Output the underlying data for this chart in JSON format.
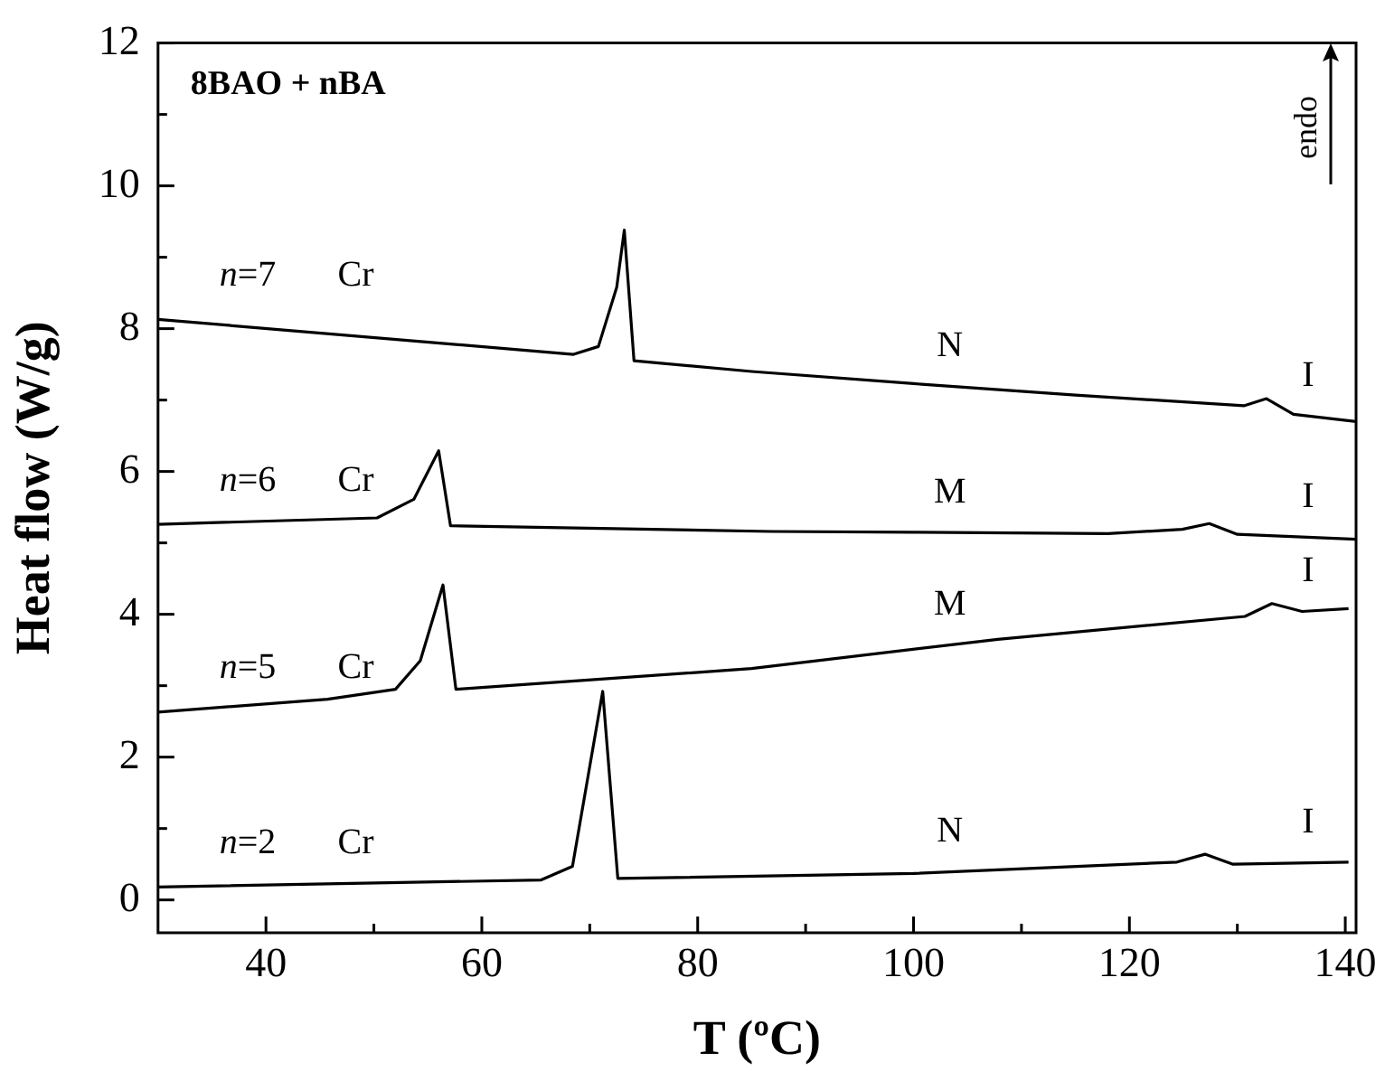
{
  "chart_data": {
    "type": "line",
    "title": "8BAO + nBA",
    "xlabel": "T (ºC)",
    "ylabel": "Heat flow (W/g)",
    "xlim": [
      30,
      141
    ],
    "ylim": [
      -0.46,
      12
    ],
    "xticks": [
      40,
      {
        "value": 50,
        "label": null
      },
      60,
      {
        "value": 70,
        "label": null
      },
      80,
      {
        "value": 90,
        "label": null
      },
      100,
      {
        "value": 110,
        "label": null
      },
      120,
      {
        "value": 130,
        "label": null
      },
      140
    ],
    "yticks": [
      0,
      {
        "value": 1,
        "label": null
      },
      2,
      {
        "value": 3,
        "label": null
      },
      4,
      {
        "value": 5,
        "label": null
      },
      6,
      {
        "value": 7,
        "label": null
      },
      8,
      {
        "value": 9,
        "label": null
      },
      10,
      {
        "value": 11,
        "label": null
      },
      12
    ],
    "grid": false,
    "legend": false,
    "marker": "none",
    "line_style": "solid",
    "series": [
      {
        "name": "n=7",
        "color": "#000000",
        "x": [
          30,
          68.5,
          70.8,
          72.5,
          73.2,
          74.1,
          85,
          100,
          115,
          130.6,
          132.7,
          135.2,
          141
        ],
        "values": [
          8.13,
          7.64,
          7.75,
          8.58,
          9.38,
          7.55,
          7.4,
          7.23,
          7.07,
          6.92,
          7.02,
          6.8,
          6.7
        ]
      },
      {
        "name": "n=6",
        "color": "#000000",
        "x": [
          30,
          50.3,
          53.7,
          56,
          57.1,
          86.8,
          100,
          118,
          124.9,
          127.4,
          130,
          141
        ],
        "values": [
          5.26,
          5.35,
          5.61,
          6.29,
          5.24,
          5.16,
          5.15,
          5.13,
          5.19,
          5.27,
          5.12,
          5.05
        ]
      },
      {
        "name": "n=5",
        "color": "#000000",
        "x": [
          30,
          45.7,
          52,
          54.3,
          56.4,
          57.6,
          85,
          107.8,
          130.7,
          133.2,
          136,
          140.3
        ],
        "values": [
          2.63,
          2.81,
          2.95,
          3.35,
          4.41,
          2.95,
          3.24,
          3.65,
          3.97,
          4.15,
          4.04,
          4.08
        ]
      },
      {
        "name": "n=2",
        "color": "#000000",
        "x": [
          30,
          65.5,
          68.4,
          71.2,
          72.6,
          100,
          124.4,
          127,
          129.6,
          140.3
        ],
        "values": [
          0.18,
          0.28,
          0.47,
          2.92,
          0.3,
          0.37,
          0.53,
          0.64,
          0.5,
          0.53
        ]
      }
    ],
    "annotations": [
      "Cr",
      "N",
      "I",
      "Cr",
      "M",
      "I",
      "Cr",
      "M",
      "I",
      "Cr",
      "N",
      "I",
      "endo"
    ]
  }
}
